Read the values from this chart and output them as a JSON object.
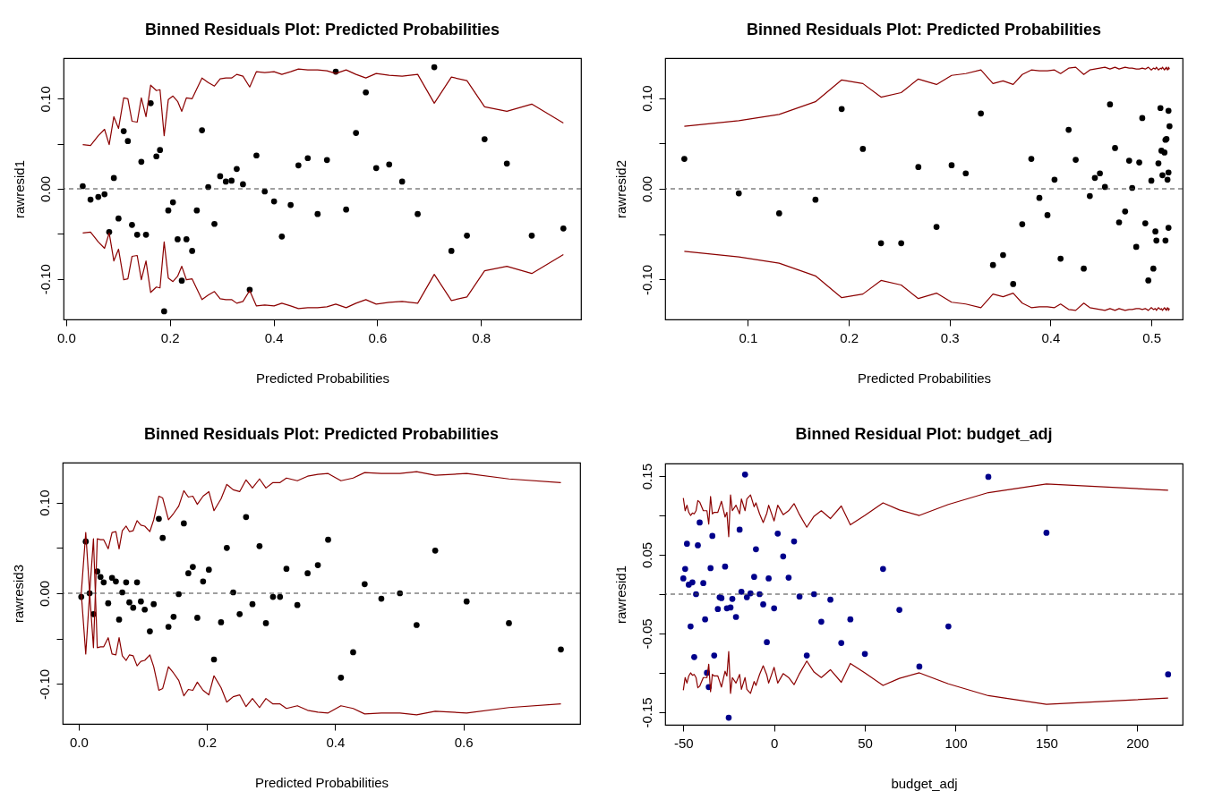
{
  "chart_data": [
    {
      "type": "scatter",
      "title": "Binned Residuals Plot: Predicted Probabilities",
      "xlabel": "Predicted Probabilities",
      "ylabel": "rawresid1",
      "x": [
        0.032,
        0.047,
        0.062,
        0.074,
        0.083,
        0.092,
        0.101,
        0.111,
        0.119,
        0.127,
        0.137,
        0.145,
        0.154,
        0.163,
        0.174,
        0.181,
        0.189,
        0.197,
        0.206,
        0.215,
        0.223,
        0.232,
        0.243,
        0.252,
        0.262,
        0.274,
        0.286,
        0.297,
        0.308,
        0.319,
        0.329,
        0.341,
        0.354,
        0.367,
        0.383,
        0.401,
        0.416,
        0.433,
        0.448,
        0.466,
        0.485,
        0.503,
        0.52,
        0.54,
        0.559,
        0.578,
        0.598,
        0.623,
        0.648,
        0.678,
        0.71,
        0.743,
        0.773,
        0.807,
        0.85,
        0.898,
        0.959
      ],
      "series": [
        {
          "marker": "circle",
          "color": "#000000",
          "values": [
            0.003,
            -0.012,
            -0.009,
            -0.006,
            -0.048,
            0.012,
            -0.033,
            0.064,
            0.053,
            -0.04,
            -0.051,
            0.03,
            -0.051,
            0.095,
            0.036,
            0.043,
            -0.136,
            -0.024,
            -0.015,
            -0.056,
            -0.102,
            -0.056,
            -0.069,
            -0.024,
            0.065,
            0.002,
            -0.039,
            0.014,
            0.008,
            0.009,
            0.022,
            0.005,
            -0.112,
            0.037,
            -0.003,
            -0.014,
            -0.053,
            -0.018,
            0.026,
            0.034,
            -0.028,
            0.032,
            0.13,
            -0.023,
            0.062,
            0.107,
            0.023,
            0.027,
            0.008,
            -0.028,
            0.135,
            -0.069,
            -0.052,
            0.055,
            0.028,
            -0.052,
            -0.044
          ]
        },
        {
          "type": "line",
          "color": "#8b0000",
          "values": [
            0.049,
            0.048,
            0.059,
            0.066,
            0.049,
            0.08,
            0.067,
            0.101,
            0.1,
            0.075,
            0.074,
            0.101,
            0.08,
            0.115,
            0.109,
            0.11,
            0.059,
            0.099,
            0.103,
            0.097,
            0.086,
            0.101,
            0.1,
            0.111,
            0.123,
            0.118,
            0.114,
            0.122,
            0.123,
            0.123,
            0.127,
            0.125,
            0.113,
            0.13,
            0.129,
            0.13,
            0.127,
            0.13,
            0.133,
            0.132,
            0.132,
            0.131,
            0.128,
            0.132,
            0.127,
            0.123,
            0.128,
            0.126,
            0.125,
            0.127,
            0.095,
            0.124,
            0.12,
            0.091,
            0.086,
            0.094,
            0.073
          ]
        },
        {
          "type": "line",
          "color": "#8b0000",
          "values": [
            -0.049,
            -0.048,
            -0.059,
            -0.066,
            -0.049,
            -0.08,
            -0.067,
            -0.101,
            -0.1,
            -0.075,
            -0.074,
            -0.101,
            -0.08,
            -0.115,
            -0.109,
            -0.11,
            -0.059,
            -0.099,
            -0.103,
            -0.097,
            -0.086,
            -0.101,
            -0.1,
            -0.111,
            -0.123,
            -0.118,
            -0.114,
            -0.122,
            -0.123,
            -0.123,
            -0.127,
            -0.125,
            -0.113,
            -0.13,
            -0.129,
            -0.13,
            -0.127,
            -0.13,
            -0.133,
            -0.132,
            -0.132,
            -0.131,
            -0.128,
            -0.132,
            -0.127,
            -0.123,
            -0.128,
            -0.126,
            -0.125,
            -0.127,
            -0.095,
            -0.124,
            -0.12,
            -0.091,
            -0.086,
            -0.094,
            -0.073
          ]
        }
      ],
      "ref_lines": [
        {
          "axis": "y",
          "value": 0,
          "color": "#404040",
          "line_style": "dashed"
        }
      ],
      "xlim": [
        -0.005,
        0.993
      ],
      "xticks": [
        {
          "value": 0,
          "label": "0.0"
        },
        0.2,
        0.4,
        0.6,
        0.8
      ],
      "ylim": [
        -0.145,
        0.145
      ],
      "yticks": [
        {
          "value": -0.1,
          "label": "-0.10"
        },
        {
          "value": -0.05,
          "label": null
        },
        {
          "value": 0,
          "label": "0.00"
        },
        {
          "value": 0.05,
          "label": null
        },
        {
          "value": 0.1,
          "label": "0.10"
        }
      ]
    },
    {
      "type": "scatter",
      "title": "Binned Residuals Plot: Predicted Probabilities",
      "xlabel": "Predicted Probabilities",
      "ylabel": "rawresid2",
      "x": [
        0.037,
        0.091,
        0.131,
        0.167,
        0.193,
        0.214,
        0.232,
        0.252,
        0.269,
        0.287,
        0.302,
        0.316,
        0.331,
        0.343,
        0.353,
        0.363,
        0.372,
        0.381,
        0.389,
        0.397,
        0.404,
        0.41,
        0.418,
        0.425,
        0.433,
        0.439,
        0.444,
        0.449,
        0.454,
        0.459,
        0.464,
        0.468,
        0.474,
        0.478,
        0.481,
        0.485,
        0.488,
        0.491,
        0.494,
        0.497,
        0.5,
        0.502,
        0.504,
        0.505,
        0.507,
        0.509,
        0.51,
        0.511,
        0.513,
        0.514,
        0.514,
        0.515,
        0.516,
        0.517,
        0.517,
        0.517,
        0.518
      ],
      "series": [
        {
          "marker": "circle",
          "color": "#000000",
          "values": [
            0.033,
            -0.005,
            -0.027,
            -0.012,
            0.088,
            0.044,
            -0.06,
            -0.06,
            0.024,
            -0.042,
            0.026,
            0.017,
            0.083,
            -0.084,
            -0.073,
            -0.105,
            -0.039,
            0.033,
            -0.01,
            -0.029,
            0.01,
            -0.077,
            0.065,
            0.032,
            -0.088,
            -0.008,
            0.012,
            0.017,
            0.002,
            0.093,
            0.045,
            -0.037,
            -0.025,
            0.031,
            0.001,
            -0.064,
            0.029,
            0.078,
            -0.038,
            -0.101,
            0.009,
            -0.088,
            -0.047,
            -0.057,
            0.028,
            0.089,
            0.042,
            0.015,
            0.04,
            -0.057,
            0.054,
            0.055,
            0.01,
            0.018,
            -0.043,
            0.086,
            0.069
          ]
        },
        {
          "type": "line",
          "color": "#8b0000",
          "values": [
            0.069,
            0.075,
            0.082,
            0.096,
            0.12,
            0.116,
            0.101,
            0.106,
            0.121,
            0.115,
            0.125,
            0.127,
            0.131,
            0.116,
            0.119,
            0.115,
            0.126,
            0.131,
            0.13,
            0.13,
            0.131,
            0.127,
            0.133,
            0.134,
            0.126,
            0.131,
            0.132,
            0.133,
            0.134,
            0.132,
            0.134,
            0.132,
            0.134,
            0.133,
            0.133,
            0.132,
            0.132,
            0.133,
            0.132,
            0.134,
            0.131,
            0.133,
            0.132,
            0.134,
            0.131,
            0.133,
            0.132,
            0.134,
            0.131,
            0.133,
            0.132,
            0.134,
            0.131,
            0.133,
            0.132,
            0.134,
            0.132
          ]
        },
        {
          "type": "line",
          "color": "#8b0000",
          "values": [
            -0.069,
            -0.075,
            -0.082,
            -0.096,
            -0.12,
            -0.116,
            -0.101,
            -0.106,
            -0.121,
            -0.115,
            -0.125,
            -0.127,
            -0.131,
            -0.116,
            -0.119,
            -0.115,
            -0.126,
            -0.131,
            -0.13,
            -0.13,
            -0.131,
            -0.127,
            -0.133,
            -0.134,
            -0.126,
            -0.131,
            -0.132,
            -0.133,
            -0.134,
            -0.132,
            -0.134,
            -0.132,
            -0.134,
            -0.133,
            -0.133,
            -0.132,
            -0.132,
            -0.133,
            -0.132,
            -0.134,
            -0.131,
            -0.133,
            -0.132,
            -0.134,
            -0.131,
            -0.133,
            -0.132,
            -0.134,
            -0.131,
            -0.133,
            -0.132,
            -0.134,
            -0.131,
            -0.133,
            -0.132,
            -0.134,
            -0.132
          ]
        }
      ],
      "ref_lines": [
        {
          "axis": "y",
          "value": 0,
          "color": "#404040",
          "line_style": "dashed"
        }
      ],
      "xlim": [
        0.018,
        0.531
      ],
      "xticks": [
        0.1,
        0.2,
        0.3,
        0.4,
        0.5
      ],
      "ylim": [
        -0.144,
        0.144
      ],
      "yticks": [
        {
          "value": -0.1,
          "label": "-0.10"
        },
        {
          "value": -0.05,
          "label": null
        },
        {
          "value": 0,
          "label": "0.00"
        },
        {
          "value": 0.05,
          "label": null
        },
        {
          "value": 0.1,
          "label": "0.10"
        }
      ]
    },
    {
      "type": "scatter",
      "title": "Binned Residuals Plot: Predicted Probabilities",
      "xlabel": "Predicted Probabilities",
      "ylabel": "rawresid3",
      "x": [
        0.004,
        0.011,
        0.017,
        0.023,
        0.029,
        0.034,
        0.039,
        0.046,
        0.052,
        0.058,
        0.063,
        0.068,
        0.074,
        0.079,
        0.085,
        0.091,
        0.097,
        0.103,
        0.111,
        0.117,
        0.125,
        0.131,
        0.14,
        0.148,
        0.156,
        0.164,
        0.171,
        0.178,
        0.185,
        0.194,
        0.203,
        0.211,
        0.222,
        0.231,
        0.241,
        0.251,
        0.261,
        0.271,
        0.282,
        0.292,
        0.303,
        0.314,
        0.324,
        0.341,
        0.357,
        0.373,
        0.389,
        0.409,
        0.428,
        0.446,
        0.472,
        0.501,
        0.527,
        0.556,
        0.605,
        0.671,
        0.752
      ],
      "series": [
        {
          "marker": "circle",
          "color": "#000000",
          "values": [
            -0.004,
            0.057,
            0.0,
            -0.023,
            0.024,
            0.018,
            0.012,
            -0.011,
            0.017,
            0.013,
            -0.029,
            0.001,
            0.012,
            -0.01,
            -0.016,
            0.012,
            -0.009,
            -0.018,
            -0.042,
            -0.012,
            0.082,
            0.061,
            -0.037,
            -0.026,
            -0.001,
            0.077,
            0.022,
            0.029,
            -0.027,
            0.013,
            0.026,
            -0.073,
            -0.032,
            0.05,
            0.001,
            -0.023,
            0.084,
            -0.012,
            0.052,
            -0.033,
            -0.004,
            -0.004,
            0.027,
            -0.013,
            0.022,
            0.031,
            0.059,
            -0.093,
            -0.065,
            0.01,
            -0.006,
            0.0,
            -0.035,
            0.047,
            -0.009,
            -0.033,
            -0.062
          ]
        },
        {
          "type": "line",
          "color": "#8b0000",
          "values": [
            0.0,
            0.067,
            0.001,
            -0.06,
            0.06,
            0.059,
            0.059,
            0.049,
            0.067,
            0.068,
            0.049,
            0.069,
            0.074,
            0.068,
            0.069,
            0.08,
            0.075,
            0.074,
            0.068,
            0.081,
            0.107,
            0.105,
            0.081,
            0.088,
            0.096,
            0.113,
            0.106,
            0.107,
            0.098,
            0.107,
            0.112,
            0.091,
            0.104,
            0.12,
            0.114,
            0.112,
            0.125,
            0.116,
            0.126,
            0.116,
            0.122,
            0.122,
            0.127,
            0.124,
            0.129,
            0.131,
            0.132,
            0.124,
            0.127,
            0.133,
            0.132,
            0.132,
            0.134,
            0.13,
            0.132,
            0.126,
            0.122
          ]
        },
        {
          "type": "line",
          "color": "#8b0000",
          "values": [
            0.0,
            -0.067,
            -0.001,
            0.06,
            -0.06,
            -0.059,
            -0.059,
            -0.049,
            -0.067,
            -0.068,
            -0.049,
            -0.069,
            -0.074,
            -0.068,
            -0.069,
            -0.08,
            -0.075,
            -0.074,
            -0.068,
            -0.081,
            -0.107,
            -0.105,
            -0.081,
            -0.088,
            -0.096,
            -0.113,
            -0.106,
            -0.107,
            -0.098,
            -0.107,
            -0.112,
            -0.091,
            -0.104,
            -0.12,
            -0.114,
            -0.112,
            -0.125,
            -0.116,
            -0.126,
            -0.116,
            -0.122,
            -0.122,
            -0.127,
            -0.124,
            -0.129,
            -0.131,
            -0.132,
            -0.124,
            -0.127,
            -0.133,
            -0.132,
            -0.132,
            -0.134,
            -0.13,
            -0.132,
            -0.126,
            -0.122
          ]
        }
      ],
      "ref_lines": [
        {
          "axis": "y",
          "value": 0,
          "color": "#404040",
          "line_style": "dashed"
        }
      ],
      "xlim": [
        -0.025,
        0.782
      ],
      "xticks": [
        {
          "value": 0,
          "label": "0.0"
        },
        0.2,
        0.4,
        0.6
      ],
      "ylim": [
        -0.144,
        0.144
      ],
      "yticks": [
        {
          "value": -0.1,
          "label": "-0.10"
        },
        {
          "value": -0.05,
          "label": null
        },
        {
          "value": 0,
          "label": "0.00"
        },
        {
          "value": 0.05,
          "label": null
        },
        {
          "value": 0.1,
          "label": "0.10"
        }
      ]
    },
    {
      "type": "scatter",
      "title": "Binned Residual Plot: budget_adj",
      "xlabel": "budget_adj",
      "ylabel": "rawresid1",
      "x": [
        -50,
        -49,
        -48,
        -47,
        -46,
        -45,
        -44,
        -43,
        -42,
        -41,
        -39,
        -38,
        -37,
        -36,
        -35,
        -34,
        -33,
        -31,
        -30,
        -29,
        -27,
        -26,
        -25,
        -24,
        -23,
        -21,
        -19,
        -18,
        -16,
        -15,
        -13,
        -11,
        -10,
        -8,
        -6,
        -4,
        -3,
        0,
        2,
        5,
        8,
        11,
        14,
        18,
        22,
        26,
        31,
        37,
        42,
        50,
        60,
        69,
        80,
        96,
        118,
        150,
        217
      ],
      "series": [
        {
          "marker": "circle",
          "color": "#00008b",
          "values": [
            0.02,
            0.032,
            0.064,
            0.012,
            -0.041,
            0.015,
            -0.08,
            0.0,
            0.062,
            0.091,
            0.014,
            -0.032,
            -0.1,
            -0.118,
            0.033,
            0.074,
            -0.078,
            -0.019,
            -0.004,
            -0.005,
            0.035,
            -0.018,
            -0.157,
            -0.017,
            -0.006,
            -0.029,
            0.082,
            0.003,
            0.152,
            -0.004,
            0.001,
            0.022,
            0.057,
            0.0,
            -0.013,
            -0.061,
            0.02,
            -0.018,
            0.077,
            0.048,
            0.021,
            0.067,
            -0.003,
            -0.078,
            0.0,
            -0.035,
            -0.007,
            -0.062,
            -0.032,
            -0.076,
            0.032,
            -0.02,
            -0.092,
            -0.041,
            0.149,
            0.078,
            -0.102
          ]
        },
        {
          "type": "line",
          "color": "#8b0000",
          "values": [
            0.122,
            0.106,
            0.113,
            0.104,
            0.1,
            0.103,
            0.102,
            0.106,
            0.119,
            0.117,
            0.106,
            0.106,
            0.106,
            0.089,
            0.124,
            0.102,
            0.104,
            0.104,
            0.111,
            0.118,
            0.098,
            0.104,
            0.073,
            0.126,
            0.106,
            0.113,
            0.102,
            0.121,
            0.106,
            0.121,
            0.126,
            0.111,
            0.116,
            0.102,
            0.091,
            0.103,
            0.113,
            0.093,
            0.113,
            0.101,
            0.106,
            0.115,
            0.101,
            0.085,
            0.099,
            0.106,
            0.096,
            0.112,
            0.088,
            0.1,
            0.116,
            0.107,
            0.1,
            0.114,
            0.129,
            0.14,
            0.132
          ]
        },
        {
          "type": "line",
          "color": "#8b0000",
          "values": [
            -0.122,
            -0.106,
            -0.113,
            -0.104,
            -0.1,
            -0.103,
            -0.102,
            -0.106,
            -0.119,
            -0.117,
            -0.106,
            -0.106,
            -0.106,
            -0.089,
            -0.124,
            -0.102,
            -0.104,
            -0.104,
            -0.111,
            -0.118,
            -0.098,
            -0.104,
            -0.073,
            -0.126,
            -0.106,
            -0.113,
            -0.102,
            -0.121,
            -0.106,
            -0.121,
            -0.126,
            -0.111,
            -0.116,
            -0.102,
            -0.091,
            -0.103,
            -0.113,
            -0.093,
            -0.113,
            -0.101,
            -0.106,
            -0.115,
            -0.101,
            -0.085,
            -0.099,
            -0.106,
            -0.096,
            -0.112,
            -0.088,
            -0.1,
            -0.116,
            -0.107,
            -0.1,
            -0.114,
            -0.129,
            -0.14,
            -0.132
          ]
        }
      ],
      "ref_lines": [
        {
          "axis": "y",
          "value": 0,
          "color": "#404040",
          "line_style": "dashed"
        }
      ],
      "xlim": [
        -60,
        225
      ],
      "xticks": [
        -50,
        0,
        50,
        100,
        150,
        200
      ],
      "ylim": [
        -0.166,
        0.166
      ],
      "yticks": [
        -0.15,
        {
          "value": -0.1,
          "label": null
        },
        -0.05,
        {
          "value": 0,
          "label": null
        },
        0.05,
        {
          "value": 0.1,
          "label": null
        },
        0.15
      ]
    }
  ]
}
